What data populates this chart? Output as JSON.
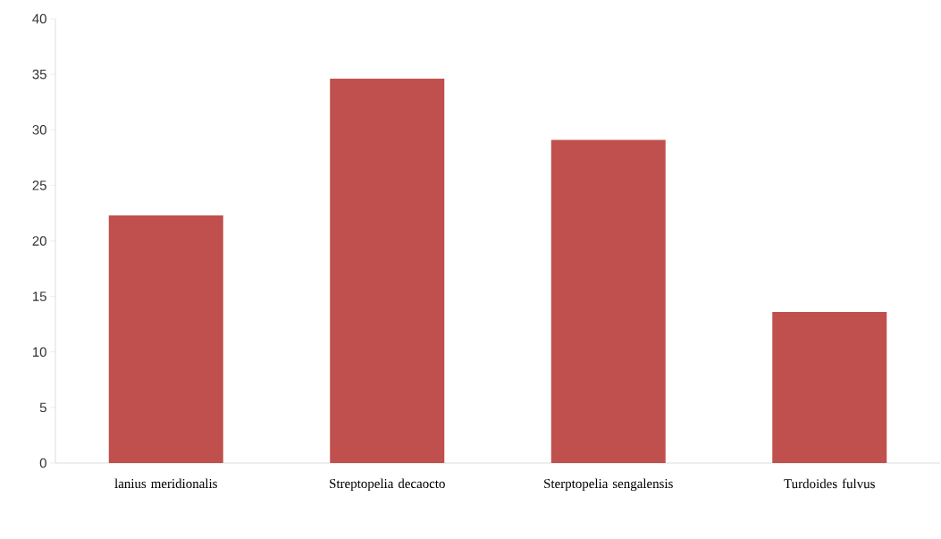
{
  "chart_data": {
    "type": "bar",
    "categories": [
      "lanius meridionalis",
      "Streptopelia decaocto",
      "Sterptopelia sengalensis",
      "Turdoides fulvus"
    ],
    "values": [
      22.3,
      34.6,
      29.1,
      13.6
    ],
    "color": "#c0504d",
    "ylim": [
      0,
      40
    ],
    "yticks": [
      0,
      5,
      10,
      15,
      20,
      25,
      30,
      35,
      40
    ],
    "grid": false
  }
}
